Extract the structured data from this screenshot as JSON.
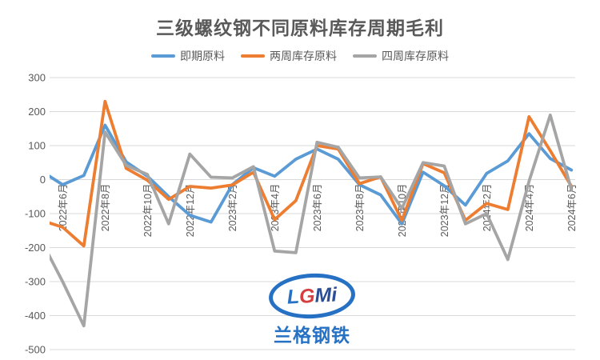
{
  "title": "三级螺纹钢不同原料库存周期毛利",
  "watermark": {
    "logo": "LGMi",
    "company": "兰格钢铁"
  },
  "colors": {
    "spot": "#5B9BD5",
    "two_week": "#ED7D31",
    "four_week": "#A5A5A5",
    "grid": "#D9D9D9",
    "axis_text": "#595959",
    "title_text": "#595959"
  },
  "chart_data": {
    "type": "line",
    "title": "三级螺纹钢不同原料库存周期毛利",
    "legend_position": "top",
    "grid": "horizontal",
    "ylim": [
      -500,
      300
    ],
    "ytick_step": 100,
    "yticks": [
      300,
      200,
      100,
      0,
      -100,
      -200,
      -300,
      -400,
      -500
    ],
    "x_tick_labels": [
      "2022年6月",
      "2022年8月",
      "2022年10月",
      "2022年12月",
      "2023年2月",
      "2023年4月",
      "2023年6月",
      "2023年8月",
      "2023年10月",
      "2023年12月",
      "2024年2月",
      "2024年4月",
      "2024年6月"
    ],
    "categories": [
      "2022年5月",
      "2022年6月",
      "2022年7月",
      "2022年8月",
      "2022年9月",
      "2022年10月",
      "2022年11月",
      "2022年12月",
      "2023年1月",
      "2023年2月",
      "2023年3月",
      "2023年4月",
      "2023年5月",
      "2023年6月",
      "2023年7月",
      "2023年8月",
      "2023年9月",
      "2023年10月",
      "2023年11月",
      "2023年12月",
      "2024年1月",
      "2024年2月",
      "2024年3月",
      "2024年4月",
      "2024年5月",
      "2024年6月"
    ],
    "series": [
      {
        "key": "spot",
        "name": "即期原料",
        "color": "#5B9BD5",
        "values": [
          25,
          -15,
          12,
          160,
          52,
          10,
          -50,
          -105,
          -125,
          -15,
          35,
          10,
          60,
          90,
          60,
          -15,
          -45,
          -130,
          22,
          -18,
          -75,
          18,
          55,
          135,
          62,
          28
        ]
      },
      {
        "key": "two_week",
        "name": "两周库存原料",
        "color": "#ED7D31",
        "values": [
          -120,
          -140,
          -195,
          230,
          33,
          -2,
          -58,
          -20,
          -25,
          -16,
          22,
          -118,
          -62,
          100,
          90,
          -12,
          8,
          -120,
          47,
          20,
          -120,
          -70,
          -88,
          185,
          85,
          -20
        ]
      },
      {
        "key": "four_week",
        "name": "四周库存原料",
        "color": "#A5A5A5",
        "values": [
          -180,
          -300,
          -430,
          140,
          42,
          15,
          -130,
          75,
          7,
          5,
          38,
          -210,
          -215,
          110,
          95,
          5,
          8,
          -85,
          50,
          40,
          -130,
          -100,
          -235,
          -5,
          190,
          -30
        ]
      }
    ]
  }
}
